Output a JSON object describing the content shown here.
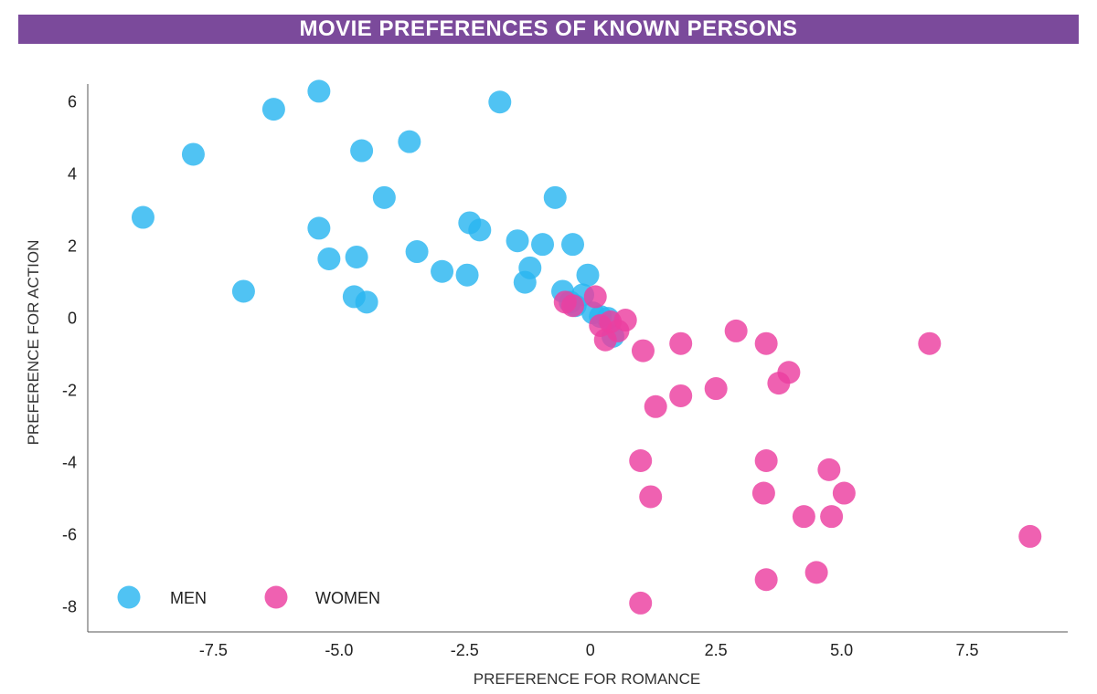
{
  "chart_data": {
    "type": "scatter",
    "title": "MOVIE PREFERENCES OF KNOWN PERSONS",
    "xlabel": "PREFERENCE FOR ROMANCE",
    "ylabel": "PREFERENCE FOR ACTION",
    "xlim": [
      -10,
      9.5
    ],
    "ylim": [
      -8.7,
      6.5
    ],
    "xticks": [
      -7.5,
      -5.0,
      -2.5,
      0,
      2.5,
      5.0,
      7.5
    ],
    "xtick_labels": [
      "-7.5",
      "-5.0",
      "-2.5",
      "0",
      "2.5",
      "5.0",
      "7.5"
    ],
    "yticks": [
      6,
      4,
      2,
      0,
      -2,
      -4,
      -6,
      -8
    ],
    "ytick_labels": [
      "6",
      "4",
      "2",
      "0",
      "-2",
      "-4",
      "-6",
      "-8"
    ],
    "grid": false,
    "legend": "bottom-left",
    "series": [
      {
        "name": "MEN",
        "color": "#29b6f0",
        "points": [
          [
            -8.9,
            2.8
          ],
          [
            -7.9,
            4.55
          ],
          [
            -6.9,
            0.75
          ],
          [
            -6.3,
            5.8
          ],
          [
            -5.4,
            6.3
          ],
          [
            -5.4,
            2.5
          ],
          [
            -5.2,
            1.65
          ],
          [
            -4.7,
            0.6
          ],
          [
            -4.65,
            1.7
          ],
          [
            -4.55,
            4.65
          ],
          [
            -4.45,
            0.45
          ],
          [
            -4.1,
            3.35
          ],
          [
            -3.6,
            4.9
          ],
          [
            -3.45,
            1.85
          ],
          [
            -2.95,
            1.3
          ],
          [
            -2.45,
            1.2
          ],
          [
            -2.4,
            2.65
          ],
          [
            -2.2,
            2.45
          ],
          [
            -1.8,
            6.0
          ],
          [
            -1.45,
            2.15
          ],
          [
            -1.3,
            1.0
          ],
          [
            -1.2,
            1.4
          ],
          [
            -0.95,
            2.05
          ],
          [
            -0.7,
            3.35
          ],
          [
            -0.55,
            0.75
          ],
          [
            -0.35,
            2.05
          ],
          [
            -0.3,
            0.35
          ],
          [
            -0.15,
            0.65
          ],
          [
            -0.05,
            1.2
          ],
          [
            0.05,
            0.15
          ],
          [
            0.2,
            0.05
          ],
          [
            0.35,
            0.0
          ],
          [
            0.45,
            -0.5
          ],
          [
            -0.4,
            0.45
          ]
        ]
      },
      {
        "name": "WOMEN",
        "color": "#ec3ea0",
        "points": [
          [
            -0.5,
            0.45
          ],
          [
            -0.35,
            0.35
          ],
          [
            0.1,
            0.6
          ],
          [
            0.2,
            -0.2
          ],
          [
            0.3,
            -0.6
          ],
          [
            0.4,
            -0.1
          ],
          [
            0.55,
            -0.35
          ],
          [
            0.7,
            -0.05
          ],
          [
            1.05,
            -0.9
          ],
          [
            1.3,
            -2.45
          ],
          [
            1.0,
            -3.95
          ],
          [
            1.2,
            -4.95
          ],
          [
            1.0,
            -7.9
          ],
          [
            1.8,
            -0.7
          ],
          [
            1.8,
            -2.15
          ],
          [
            2.5,
            -1.95
          ],
          [
            2.9,
            -0.35
          ],
          [
            3.5,
            -0.7
          ],
          [
            3.5,
            -3.95
          ],
          [
            3.45,
            -4.85
          ],
          [
            3.5,
            -7.25
          ],
          [
            3.75,
            -1.8
          ],
          [
            3.95,
            -1.5
          ],
          [
            4.25,
            -5.5
          ],
          [
            4.5,
            -7.05
          ],
          [
            4.75,
            -4.2
          ],
          [
            4.8,
            -5.5
          ],
          [
            5.05,
            -4.85
          ],
          [
            6.75,
            -0.7
          ],
          [
            8.75,
            -6.05
          ]
        ]
      }
    ]
  }
}
